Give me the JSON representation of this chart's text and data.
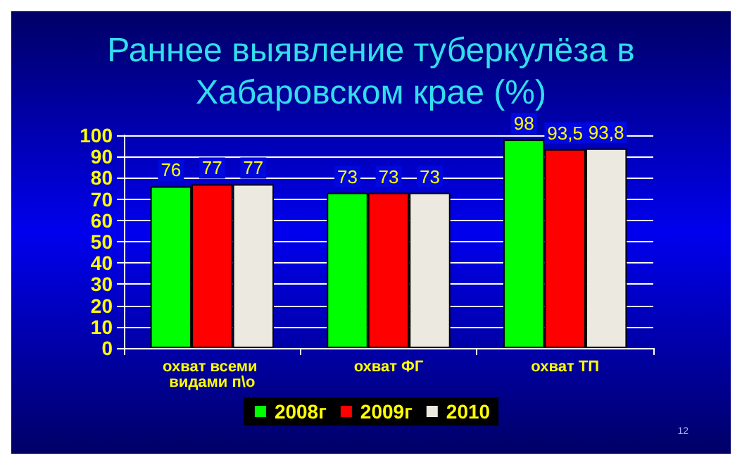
{
  "chart_data": {
    "type": "bar",
    "title": "Раннее выявление туберкулёза в\nХабаровском крае (%)",
    "categories": [
      "охват всеми видами п\\о",
      "охват ФГ",
      "охват ТП"
    ],
    "series": [
      {
        "name": "2008г",
        "color": "#00ff00",
        "values": [
          76,
          73,
          98
        ],
        "value_labels": [
          "76",
          "73",
          "98"
        ]
      },
      {
        "name": "2009г",
        "color": "#ff0000",
        "values": [
          77,
          73,
          93.5
        ],
        "value_labels": [
          "77",
          "73",
          "93,5"
        ]
      },
      {
        "name": "2010",
        "color": "#ece9e0",
        "values": [
          77,
          73,
          93.8
        ],
        "value_labels": [
          "77",
          "73",
          "93,8"
        ]
      }
    ],
    "ylim": [
      0,
      100
    ],
    "yticks": [
      0,
      10,
      20,
      30,
      40,
      50,
      60,
      70,
      80,
      90,
      100
    ],
    "grid": "y",
    "legend": "bottom",
    "annotations": [
      "12"
    ]
  }
}
